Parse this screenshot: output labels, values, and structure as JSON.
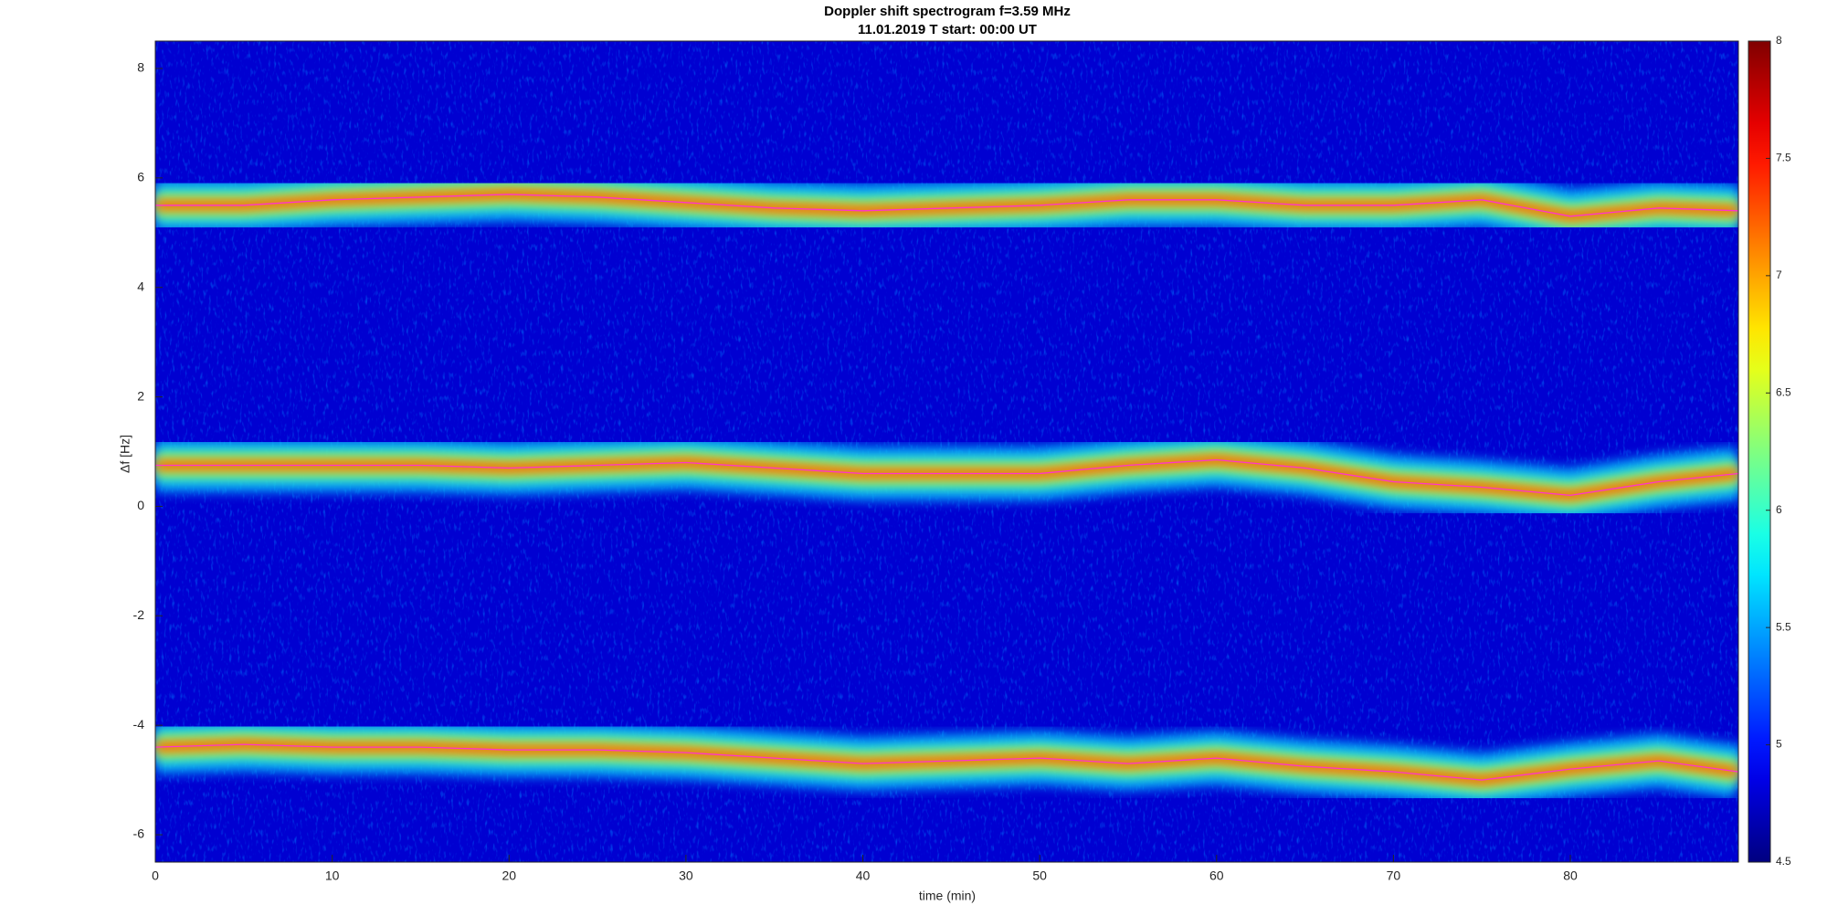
{
  "chart_data": {
    "type": "spectrogram",
    "title": "Doppler shift spectrogram f=3.59 MHz",
    "subtitle": "11.01.2019   T start: 00:00 UT",
    "x_label": "time (min)",
    "y_label": "Δf [Hz]",
    "x": [
      0,
      5,
      10,
      15,
      20,
      25,
      30,
      35,
      40,
      45,
      50,
      55,
      60,
      65,
      70,
      75,
      80,
      85,
      89.5
    ],
    "series": [
      {
        "color": "#ff33cc",
        "values": [
          5.5,
          5.5,
          5.6,
          5.65,
          5.7,
          5.65,
          5.55,
          5.45,
          5.4,
          5.45,
          5.5,
          5.6,
          5.6,
          5.5,
          5.5,
          5.6,
          5.3,
          5.45,
          5.4
        ]
      },
      {
        "color": "#ff33cc",
        "values": [
          0.75,
          0.75,
          0.75,
          0.75,
          0.7,
          0.75,
          0.8,
          0.7,
          0.6,
          0.6,
          0.6,
          0.75,
          0.85,
          0.7,
          0.45,
          0.35,
          0.2,
          0.45,
          0.6
        ]
      },
      {
        "color": "#ff33cc",
        "values": [
          -4.4,
          -4.35,
          -4.4,
          -4.4,
          -4.45,
          -4.45,
          -4.5,
          -4.6,
          -4.7,
          -4.65,
          -4.6,
          -4.7,
          -4.6,
          -4.75,
          -4.85,
          -5.0,
          -4.8,
          -4.65,
          -4.85
        ]
      }
    ],
    "xlim": [
      0,
      89.5
    ],
    "xticks": [
      0,
      10,
      20,
      30,
      40,
      50,
      60,
      70,
      80
    ],
    "ylim": [
      -6.5,
      8.5
    ],
    "yticks": [
      -6,
      -4,
      -2,
      0,
      2,
      4,
      6,
      8
    ],
    "colormap": "jet",
    "clim": [
      4.5,
      8
    ],
    "cticks": [
      4.5,
      5,
      5.5,
      6,
      6.5,
      7,
      7.5,
      8
    ]
  }
}
